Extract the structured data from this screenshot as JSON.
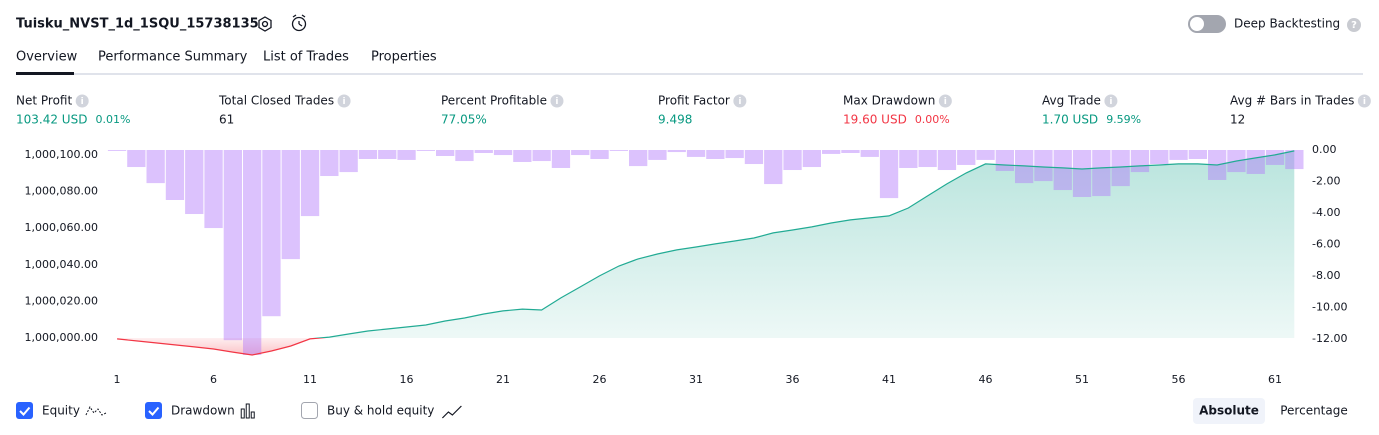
{
  "header": {
    "title": "Tuisku_NVST_1d_1SQU_15738135",
    "deep_backtesting": "Deep Backtesting"
  },
  "tabs": [
    "Overview",
    "Performance Summary",
    "List of Trades",
    "Properties"
  ],
  "stats": [
    {
      "label": "Net Profit",
      "value": "103.42 USD",
      "sub": "0.01%",
      "color": "#089981"
    },
    {
      "label": "Total Closed Trades",
      "value": "61",
      "color": "#131722"
    },
    {
      "label": "Percent Profitable",
      "value": "77.05%",
      "color": "#089981"
    },
    {
      "label": "Profit Factor",
      "value": "9.498",
      "color": "#089981"
    },
    {
      "label": "Max Drawdown",
      "value": "19.60 USD",
      "sub": "0.00%",
      "color": "#f23645"
    },
    {
      "label": "Avg Trade",
      "value": "1.70 USD",
      "sub": "9.59%",
      "color": "#089981"
    },
    {
      "label": "Avg # Bars in Trades",
      "value": "12",
      "color": "#131722"
    }
  ],
  "chart_data": {
    "type": "line",
    "x": [
      1,
      2,
      3,
      4,
      5,
      6,
      7,
      8,
      9,
      10,
      11,
      12,
      13,
      14,
      15,
      16,
      17,
      18,
      19,
      20,
      21,
      22,
      23,
      24,
      25,
      26,
      27,
      28,
      29,
      30,
      31,
      32,
      33,
      34,
      35,
      36,
      37,
      38,
      39,
      40,
      41,
      42,
      43,
      44,
      45,
      46,
      47,
      48,
      49,
      50,
      51,
      52,
      53,
      54,
      55,
      56,
      57,
      58,
      59,
      60,
      61,
      62
    ],
    "xlim": [
      0.5,
      62.5
    ],
    "xticks": [
      1,
      6,
      11,
      16,
      21,
      26,
      31,
      36,
      41,
      46,
      51,
      56,
      61
    ],
    "ylim": [
      999990.7,
      1000102.7
    ],
    "yticks": [
      {
        "value": 1000000,
        "label": "1,000,000.00"
      },
      {
        "value": 1000020,
        "label": "1,000,020.00"
      },
      {
        "value": 1000040,
        "label": "1,000,040.00"
      },
      {
        "value": 1000060,
        "label": "1,000,060.00"
      },
      {
        "value": 1000080,
        "label": "1,000,080.00"
      },
      {
        "value": 1000100,
        "label": "1,000,100.00"
      }
    ],
    "y2lim": [
      -13,
      0
    ],
    "y2ticks": [
      {
        "value": 0,
        "label": "0.00"
      },
      {
        "value": -2,
        "label": "-2.00"
      },
      {
        "value": -4,
        "label": "-4.00"
      },
      {
        "value": -6,
        "label": "-6.00"
      },
      {
        "value": -8,
        "label": "-8.00"
      },
      {
        "value": -10,
        "label": "-10.00"
      },
      {
        "value": -12,
        "label": "-12.00"
      }
    ],
    "series": [
      {
        "name": "Equity",
        "color": "#22ab94",
        "negative_color": "#f23645",
        "values": [
          999999.5,
          999998.4,
          999997.3,
          999996.2,
          999995.1,
          999994,
          999992.3,
          999990.7,
          999992.9,
          999995.6,
          999999.5,
          1000000.5,
          1000002.2,
          1000003.8,
          1000004.9,
          1000006,
          1000007.1,
          1000009.3,
          1000010.9,
          1000013.1,
          1000014.8,
          1000015.8,
          1000015.3,
          1000021.9,
          1000027.9,
          1000033.9,
          1000039.3,
          1000043.2,
          1000045.9,
          1000048.1,
          1000049.7,
          1000051.4,
          1000053,
          1000054.6,
          1000057.4,
          1000059,
          1000060.7,
          1000062.8,
          1000064.5,
          1000065.6,
          1000066.7,
          1000071,
          1000077.6,
          1000084.2,
          1000090.2,
          1000095.1,
          1000094.5,
          1000094,
          1000093.4,
          1000092.9,
          1000092.3,
          1000092.9,
          1000093.4,
          1000094,
          1000094.5,
          1000095.1,
          1000095.1,
          1000094.5,
          1000096.7,
          1000098.4,
          1000100,
          1000102.2
        ]
      },
      {
        "name": "Drawdown",
        "type": "bar",
        "axis": "y2",
        "color": "rgba(178,120,250,0.45)",
        "values": [
          -0.06,
          -1.08,
          -2.1,
          -3.17,
          -4.06,
          -4.95,
          -12.06,
          -13.0,
          -10.54,
          -6.92,
          -4.19,
          -1.65,
          -1.4,
          -0.57,
          -0.57,
          -0.63,
          -0.06,
          -0.38,
          -0.7,
          -0.19,
          -0.32,
          -0.76,
          -0.7,
          -1.14,
          -0.32,
          -0.57,
          -0.06,
          -1.02,
          -0.63,
          -0.13,
          -0.44,
          -0.57,
          -0.51,
          -0.89,
          -2.16,
          -1.27,
          -1.08,
          -0.25,
          -0.19,
          -0.44,
          -3.05,
          -1.14,
          -1.08,
          -1.27,
          -0.95,
          -0.63,
          -1.33,
          -2.1,
          -1.97,
          -2.54,
          -2.98,
          -2.92,
          -2.29,
          -1.4,
          -0.89,
          -0.63,
          -0.57,
          -1.9,
          -1.4,
          -1.52,
          -0.95,
          -1.21
        ]
      }
    ]
  },
  "toggles": {
    "buy_hold": "Buy & hold equity"
  },
  "buttons": [
    "Absolute",
    "Percentage"
  ]
}
